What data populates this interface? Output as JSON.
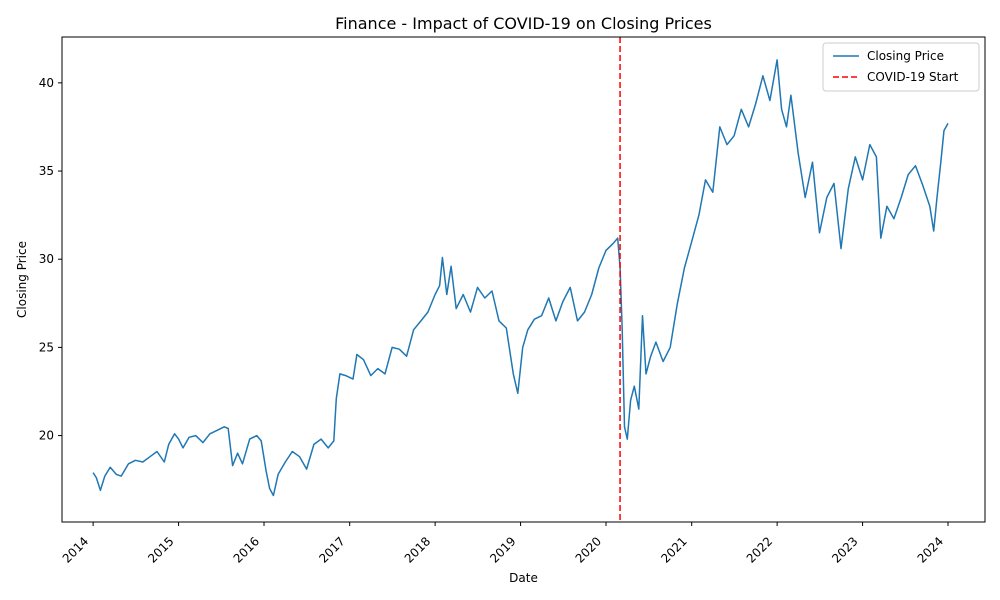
{
  "chart_data": {
    "type": "line",
    "title": "Finance - Impact of COVID-19 on Closing Prices",
    "xlabel": "Date",
    "ylabel": "Closing Price",
    "xlim": [
      "2013-08-21",
      "2024-06-07"
    ],
    "ylim": [
      15.1,
      42.6
    ],
    "x_ticks": [
      "2014",
      "2015",
      "2016",
      "2017",
      "2018",
      "2019",
      "2020",
      "2021",
      "2022",
      "2023",
      "2024"
    ],
    "y_ticks": [
      20,
      25,
      30,
      35,
      40
    ],
    "legend": {
      "position": "top-right",
      "entries": [
        "Closing Price",
        "COVID-19 Start"
      ]
    },
    "grid": false,
    "series": [
      {
        "name": "Closing Price",
        "color": "#1f77b4",
        "points": [
          [
            "2014-01-01",
            17.9
          ],
          [
            "2014-01-15",
            17.6
          ],
          [
            "2014-02-01",
            16.9
          ],
          [
            "2014-02-20",
            17.7
          ],
          [
            "2014-03-15",
            18.2
          ],
          [
            "2014-04-10",
            17.8
          ],
          [
            "2014-05-01",
            17.7
          ],
          [
            "2014-06-01",
            18.4
          ],
          [
            "2014-07-01",
            18.6
          ],
          [
            "2014-08-01",
            18.5
          ],
          [
            "2014-09-01",
            18.8
          ],
          [
            "2014-10-01",
            19.1
          ],
          [
            "2014-11-01",
            18.5
          ],
          [
            "2014-11-20",
            19.5
          ],
          [
            "2014-12-15",
            20.1
          ],
          [
            "2015-01-01",
            19.8
          ],
          [
            "2015-01-20",
            19.3
          ],
          [
            "2015-02-15",
            19.9
          ],
          [
            "2015-03-15",
            20.0
          ],
          [
            "2015-04-15",
            19.6
          ],
          [
            "2015-05-15",
            20.1
          ],
          [
            "2015-06-15",
            20.3
          ],
          [
            "2015-07-15",
            20.5
          ],
          [
            "2015-08-01",
            20.4
          ],
          [
            "2015-08-20",
            18.3
          ],
          [
            "2015-09-10",
            19.0
          ],
          [
            "2015-10-01",
            18.4
          ],
          [
            "2015-11-01",
            19.8
          ],
          [
            "2015-12-01",
            20.0
          ],
          [
            "2015-12-20",
            19.7
          ],
          [
            "2016-01-10",
            18.0
          ],
          [
            "2016-01-25",
            17.0
          ],
          [
            "2016-02-10",
            16.6
          ],
          [
            "2016-03-01",
            17.8
          ],
          [
            "2016-04-01",
            18.5
          ],
          [
            "2016-05-01",
            19.1
          ],
          [
            "2016-06-01",
            18.8
          ],
          [
            "2016-07-01",
            18.1
          ],
          [
            "2016-08-01",
            19.5
          ],
          [
            "2016-09-01",
            19.8
          ],
          [
            "2016-10-01",
            19.3
          ],
          [
            "2016-10-25",
            19.7
          ],
          [
            "2016-11-05",
            22.1
          ],
          [
            "2016-11-20",
            23.5
          ],
          [
            "2016-12-15",
            23.4
          ],
          [
            "2017-01-15",
            23.2
          ],
          [
            "2017-02-01",
            24.6
          ],
          [
            "2017-03-01",
            24.3
          ],
          [
            "2017-04-01",
            23.4
          ],
          [
            "2017-05-01",
            23.8
          ],
          [
            "2017-06-01",
            23.5
          ],
          [
            "2017-07-01",
            25.0
          ],
          [
            "2017-08-01",
            24.9
          ],
          [
            "2017-09-01",
            24.5
          ],
          [
            "2017-10-01",
            26.0
          ],
          [
            "2017-11-01",
            26.5
          ],
          [
            "2017-12-01",
            27.0
          ],
          [
            "2018-01-01",
            28.0
          ],
          [
            "2018-01-20",
            28.5
          ],
          [
            "2018-02-01",
            30.1
          ],
          [
            "2018-02-20",
            28.0
          ],
          [
            "2018-03-10",
            29.6
          ],
          [
            "2018-04-01",
            27.2
          ],
          [
            "2018-05-01",
            28.0
          ],
          [
            "2018-06-01",
            27.0
          ],
          [
            "2018-07-01",
            28.4
          ],
          [
            "2018-08-01",
            27.8
          ],
          [
            "2018-09-01",
            28.2
          ],
          [
            "2018-10-01",
            26.5
          ],
          [
            "2018-11-01",
            26.1
          ],
          [
            "2018-12-01",
            23.5
          ],
          [
            "2018-12-20",
            22.4
          ],
          [
            "2019-01-10",
            25.0
          ],
          [
            "2019-02-01",
            26.0
          ],
          [
            "2019-03-01",
            26.6
          ],
          [
            "2019-04-01",
            26.8
          ],
          [
            "2019-05-01",
            27.8
          ],
          [
            "2019-06-01",
            26.5
          ],
          [
            "2019-07-01",
            27.6
          ],
          [
            "2019-08-01",
            28.4
          ],
          [
            "2019-09-01",
            26.5
          ],
          [
            "2019-10-01",
            27.0
          ],
          [
            "2019-11-01",
            28.0
          ],
          [
            "2019-12-01",
            29.5
          ],
          [
            "2020-01-01",
            30.5
          ],
          [
            "2020-02-01",
            30.9
          ],
          [
            "2020-02-20",
            31.2
          ],
          [
            "2020-03-01",
            29.5
          ],
          [
            "2020-03-10",
            26.0
          ],
          [
            "2020-03-20",
            20.5
          ],
          [
            "2020-04-01",
            19.8
          ],
          [
            "2020-04-15",
            22.0
          ],
          [
            "2020-05-01",
            22.8
          ],
          [
            "2020-05-20",
            21.5
          ],
          [
            "2020-06-05",
            26.8
          ],
          [
            "2020-06-20",
            23.5
          ],
          [
            "2020-07-10",
            24.5
          ],
          [
            "2020-08-01",
            25.3
          ],
          [
            "2020-09-01",
            24.2
          ],
          [
            "2020-10-01",
            25.0
          ],
          [
            "2020-11-01",
            27.5
          ],
          [
            "2020-12-01",
            29.5
          ],
          [
            "2021-01-01",
            31.0
          ],
          [
            "2021-02-01",
            32.5
          ],
          [
            "2021-03-01",
            34.5
          ],
          [
            "2021-04-01",
            33.8
          ],
          [
            "2021-05-01",
            37.5
          ],
          [
            "2021-06-01",
            36.5
          ],
          [
            "2021-07-01",
            37.0
          ],
          [
            "2021-08-01",
            38.5
          ],
          [
            "2021-09-01",
            37.5
          ],
          [
            "2021-10-01",
            38.8
          ],
          [
            "2021-11-01",
            40.4
          ],
          [
            "2021-12-01",
            39.0
          ],
          [
            "2022-01-01",
            41.3
          ],
          [
            "2022-01-20",
            38.5
          ],
          [
            "2022-02-10",
            37.5
          ],
          [
            "2022-03-01",
            39.3
          ],
          [
            "2022-04-01",
            36.0
          ],
          [
            "2022-05-01",
            33.5
          ],
          [
            "2022-06-01",
            35.5
          ],
          [
            "2022-07-01",
            31.5
          ],
          [
            "2022-08-01",
            33.5
          ],
          [
            "2022-09-01",
            34.3
          ],
          [
            "2022-10-01",
            30.6
          ],
          [
            "2022-11-01",
            34.0
          ],
          [
            "2022-12-01",
            35.8
          ],
          [
            "2023-01-01",
            34.5
          ],
          [
            "2023-02-01",
            36.5
          ],
          [
            "2023-03-01",
            35.8
          ],
          [
            "2023-03-20",
            31.2
          ],
          [
            "2023-04-15",
            33.0
          ],
          [
            "2023-05-15",
            32.3
          ],
          [
            "2023-06-15",
            33.5
          ],
          [
            "2023-07-15",
            34.8
          ],
          [
            "2023-08-15",
            35.3
          ],
          [
            "2023-09-15",
            34.2
          ],
          [
            "2023-10-15",
            33.0
          ],
          [
            "2023-11-01",
            31.6
          ],
          [
            "2023-11-15",
            33.5
          ],
          [
            "2023-12-01",
            35.5
          ],
          [
            "2023-12-15",
            37.3
          ],
          [
            "2024-01-01",
            37.7
          ]
        ]
      }
    ],
    "annotations": [
      {
        "type": "vline",
        "x": "2020-03-01",
        "label": "COVID-19 Start",
        "color": "#ff0000",
        "style": "dashed"
      }
    ]
  }
}
